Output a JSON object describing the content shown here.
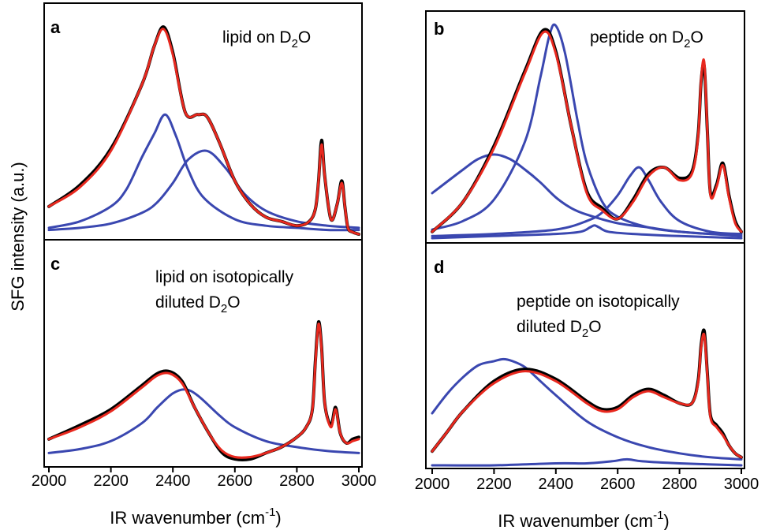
{
  "figure": {
    "ylabel": "SFG intensity (a.u.)",
    "xlabel_left": "IR wavenumber (cm",
    "xlabel_right": "IR wavenumber (cm",
    "xlabel_exp": "-1",
    "xlabel_close": ")"
  },
  "panels": {
    "a": {
      "letter": "a",
      "line1": "lipid on D",
      "sub": "2",
      "tail": "O"
    },
    "b": {
      "letter": "b",
      "line1": "peptide on D",
      "sub": "2",
      "tail": "O"
    },
    "c": {
      "letter": "c",
      "line1": "lipid on isotopically",
      "line2": "diluted D",
      "sub": "2",
      "tail": "O"
    },
    "d": {
      "letter": "d",
      "line1": "peptide on isotopically",
      "line2": "diluted D",
      "sub": "2",
      "tail": "O"
    }
  },
  "colors": {
    "data": "#000000",
    "fit": "#e8281e",
    "component": "#3a47b0"
  },
  "chart_data": [
    {
      "panel": "a",
      "type": "line",
      "title": "lipid on D2O",
      "xlim": [
        2000,
        3000
      ],
      "ylim": [
        0,
        1
      ],
      "xticks": [
        2000,
        2200,
        2400,
        2600,
        2800,
        3000
      ],
      "series": [
        {
          "role": "data",
          "x": [
            2000,
            2100,
            2200,
            2300,
            2340,
            2370,
            2400,
            2440,
            2480,
            2510,
            2550,
            2600,
            2650,
            2700,
            2750,
            2800,
            2840,
            2860,
            2870,
            2880,
            2890,
            2910,
            2930,
            2945,
            2955,
            2965,
            2980,
            3000
          ],
          "y": [
            0.13,
            0.23,
            0.4,
            0.7,
            0.88,
            0.97,
            0.85,
            0.57,
            0.56,
            0.55,
            0.43,
            0.25,
            0.14,
            0.08,
            0.06,
            0.04,
            0.06,
            0.12,
            0.25,
            0.44,
            0.27,
            0.07,
            0.14,
            0.25,
            0.13,
            0.03,
            0.01,
            0.0
          ]
        },
        {
          "role": "fit",
          "x": [
            2000,
            2100,
            2200,
            2300,
            2340,
            2370,
            2400,
            2440,
            2480,
            2510,
            2550,
            2600,
            2650,
            2700,
            2750,
            2800,
            2840,
            2860,
            2870,
            2880,
            2890,
            2910,
            2930,
            2945,
            2955,
            2965,
            2980,
            3000
          ],
          "y": [
            0.13,
            0.22,
            0.39,
            0.7,
            0.88,
            0.96,
            0.84,
            0.57,
            0.56,
            0.55,
            0.43,
            0.25,
            0.14,
            0.08,
            0.06,
            0.04,
            0.06,
            0.12,
            0.25,
            0.42,
            0.27,
            0.07,
            0.14,
            0.24,
            0.13,
            0.03,
            0.01,
            0.0
          ]
        },
        {
          "role": "component",
          "x": [
            2000,
            2100,
            2200,
            2250,
            2300,
            2340,
            2375,
            2410,
            2450,
            2500,
            2600,
            2700,
            2800,
            2900,
            3000
          ],
          "y": [
            0.03,
            0.06,
            0.13,
            0.21,
            0.36,
            0.47,
            0.56,
            0.46,
            0.3,
            0.17,
            0.07,
            0.04,
            0.03,
            0.02,
            0.02
          ]
        },
        {
          "role": "component",
          "x": [
            2000,
            2100,
            2200,
            2300,
            2350,
            2400,
            2450,
            2510,
            2570,
            2630,
            2700,
            2800,
            2900,
            3000
          ],
          "y": [
            0.02,
            0.03,
            0.05,
            0.1,
            0.15,
            0.24,
            0.35,
            0.39,
            0.31,
            0.19,
            0.11,
            0.06,
            0.04,
            0.03
          ]
        }
      ]
    },
    {
      "panel": "b",
      "type": "line",
      "title": "peptide on D2O",
      "xlim": [
        2000,
        3000
      ],
      "ylim": [
        0,
        1
      ],
      "xticks": [
        2000,
        2200,
        2400,
        2600,
        2800,
        3000
      ],
      "series": [
        {
          "role": "data",
          "x": [
            2000,
            2100,
            2200,
            2300,
            2360,
            2400,
            2450,
            2500,
            2550,
            2600,
            2650,
            2700,
            2750,
            2800,
            2840,
            2860,
            2870,
            2880,
            2890,
            2900,
            2920,
            2940,
            2960,
            2980,
            3000
          ],
          "y": [
            0.03,
            0.17,
            0.43,
            0.78,
            0.97,
            0.87,
            0.52,
            0.22,
            0.14,
            0.09,
            0.18,
            0.3,
            0.33,
            0.28,
            0.31,
            0.48,
            0.73,
            0.8,
            0.5,
            0.21,
            0.25,
            0.35,
            0.2,
            0.08,
            0.03
          ]
        },
        {
          "role": "fit",
          "x": [
            2000,
            2100,
            2200,
            2300,
            2360,
            2400,
            2450,
            2500,
            2550,
            2600,
            2650,
            2700,
            2750,
            2800,
            2840,
            2860,
            2870,
            2880,
            2890,
            2900,
            2920,
            2940,
            2960,
            2980,
            3000
          ],
          "y": [
            0.03,
            0.17,
            0.42,
            0.77,
            0.96,
            0.86,
            0.52,
            0.21,
            0.13,
            0.09,
            0.17,
            0.29,
            0.33,
            0.27,
            0.3,
            0.47,
            0.74,
            0.82,
            0.5,
            0.2,
            0.24,
            0.34,
            0.19,
            0.07,
            0.03
          ]
        },
        {
          "role": "component",
          "x": [
            2000,
            2100,
            2150,
            2200,
            2250,
            2300,
            2350,
            2400,
            2450,
            2500,
            2600,
            2700,
            2800,
            2900,
            3000
          ],
          "y": [
            0.21,
            0.32,
            0.37,
            0.39,
            0.37,
            0.32,
            0.26,
            0.19,
            0.14,
            0.11,
            0.07,
            0.05,
            0.03,
            0.02,
            0.02
          ]
        },
        {
          "role": "component",
          "x": [
            2000,
            2100,
            2200,
            2300,
            2350,
            2380,
            2400,
            2430,
            2470,
            2500,
            2550,
            2600,
            2700,
            2800,
            2900,
            3000
          ],
          "y": [
            0.04,
            0.08,
            0.18,
            0.45,
            0.75,
            0.95,
            0.99,
            0.86,
            0.55,
            0.35,
            0.17,
            0.1,
            0.05,
            0.03,
            0.02,
            0.01
          ]
        },
        {
          "role": "component",
          "x": [
            2000,
            2200,
            2400,
            2500,
            2550,
            2600,
            2640,
            2670,
            2700,
            2740,
            2800,
            2900,
            3000
          ],
          "y": [
            0.01,
            0.02,
            0.04,
            0.08,
            0.12,
            0.2,
            0.29,
            0.33,
            0.27,
            0.17,
            0.08,
            0.03,
            0.02
          ]
        },
        {
          "role": "component",
          "x": [
            2000,
            2200,
            2400,
            2480,
            2510,
            2525,
            2540,
            2570,
            2650,
            2800,
            3000
          ],
          "y": [
            0.0,
            0.01,
            0.02,
            0.03,
            0.05,
            0.06,
            0.05,
            0.03,
            0.02,
            0.01,
            0.0
          ]
        }
      ]
    },
    {
      "panel": "c",
      "type": "line",
      "title": "lipid on isotopically diluted D2O",
      "xlim": [
        2000,
        3000
      ],
      "ylim": [
        0,
        1
      ],
      "xticks": [
        2000,
        2200,
        2400,
        2600,
        2800,
        3000
      ],
      "series": [
        {
          "role": "data",
          "x": [
            2000,
            2100,
            2200,
            2300,
            2350,
            2390,
            2430,
            2470,
            2520,
            2560,
            2600,
            2650,
            2700,
            2750,
            2800,
            2830,
            2850,
            2860,
            2870,
            2880,
            2890,
            2910,
            2925,
            2940,
            2960,
            2980,
            3000
          ],
          "y": [
            0.1,
            0.17,
            0.25,
            0.37,
            0.43,
            0.44,
            0.39,
            0.26,
            0.12,
            0.03,
            0.0,
            0.0,
            0.03,
            0.06,
            0.11,
            0.16,
            0.25,
            0.5,
            0.69,
            0.56,
            0.28,
            0.17,
            0.26,
            0.13,
            0.08,
            0.1,
            0.11
          ]
        },
        {
          "role": "fit",
          "x": [
            2000,
            2100,
            2200,
            2300,
            2350,
            2390,
            2430,
            2470,
            2520,
            2560,
            2600,
            2650,
            2700,
            2750,
            2800,
            2830,
            2850,
            2860,
            2870,
            2880,
            2890,
            2910,
            2925,
            2940,
            2960,
            2980,
            3000
          ],
          "y": [
            0.1,
            0.16,
            0.24,
            0.36,
            0.42,
            0.43,
            0.38,
            0.26,
            0.12,
            0.04,
            0.01,
            0.01,
            0.03,
            0.06,
            0.11,
            0.16,
            0.25,
            0.49,
            0.68,
            0.55,
            0.28,
            0.16,
            0.25,
            0.13,
            0.08,
            0.09,
            0.1
          ]
        },
        {
          "role": "component",
          "x": [
            2000,
            2100,
            2200,
            2300,
            2350,
            2400,
            2440,
            2480,
            2550,
            2600,
            2700,
            2800,
            2900,
            3000
          ],
          "y": [
            0.03,
            0.05,
            0.09,
            0.18,
            0.26,
            0.33,
            0.35,
            0.32,
            0.22,
            0.16,
            0.09,
            0.06,
            0.04,
            0.03
          ]
        }
      ]
    },
    {
      "panel": "d",
      "type": "line",
      "title": "peptide on isotopically diluted D2O",
      "xlim": [
        2000,
        3000
      ],
      "ylim": [
        0,
        1
      ],
      "xticks": [
        2000,
        2200,
        2400,
        2600,
        2800,
        3000
      ],
      "series": [
        {
          "role": "data",
          "x": [
            2000,
            2050,
            2100,
            2200,
            2300,
            2400,
            2500,
            2550,
            2600,
            2650,
            2700,
            2750,
            2800,
            2840,
            2860,
            2870,
            2880,
            2890,
            2900,
            2920,
            2940,
            2960,
            2980,
            3000
          ],
          "y": [
            0.07,
            0.17,
            0.27,
            0.42,
            0.48,
            0.43,
            0.32,
            0.28,
            0.29,
            0.35,
            0.38,
            0.35,
            0.31,
            0.31,
            0.42,
            0.6,
            0.67,
            0.46,
            0.25,
            0.2,
            0.16,
            0.1,
            0.06,
            0.04
          ]
        },
        {
          "role": "fit",
          "x": [
            2000,
            2050,
            2100,
            2200,
            2300,
            2400,
            2500,
            2550,
            2600,
            2650,
            2700,
            2750,
            2800,
            2840,
            2860,
            2870,
            2880,
            2890,
            2900,
            2920,
            2940,
            2960,
            2980,
            3000
          ],
          "y": [
            0.07,
            0.17,
            0.27,
            0.41,
            0.47,
            0.42,
            0.31,
            0.27,
            0.28,
            0.34,
            0.37,
            0.34,
            0.31,
            0.31,
            0.41,
            0.59,
            0.65,
            0.45,
            0.24,
            0.19,
            0.15,
            0.1,
            0.06,
            0.04
          ]
        },
        {
          "role": "component",
          "x": [
            2000,
            2050,
            2100,
            2150,
            2200,
            2230,
            2260,
            2300,
            2350,
            2400,
            2500,
            2600,
            2700,
            2800,
            2900,
            3000
          ],
          "y": [
            0.26,
            0.36,
            0.44,
            0.5,
            0.52,
            0.53,
            0.52,
            0.49,
            0.42,
            0.35,
            0.22,
            0.14,
            0.09,
            0.06,
            0.04,
            0.03
          ]
        },
        {
          "role": "component",
          "x": [
            2000,
            2200,
            2400,
            2500,
            2580,
            2630,
            2680,
            2800,
            3000
          ],
          "y": [
            0.0,
            0.0,
            0.01,
            0.01,
            0.02,
            0.03,
            0.02,
            0.01,
            0.0
          ]
        }
      ]
    }
  ]
}
